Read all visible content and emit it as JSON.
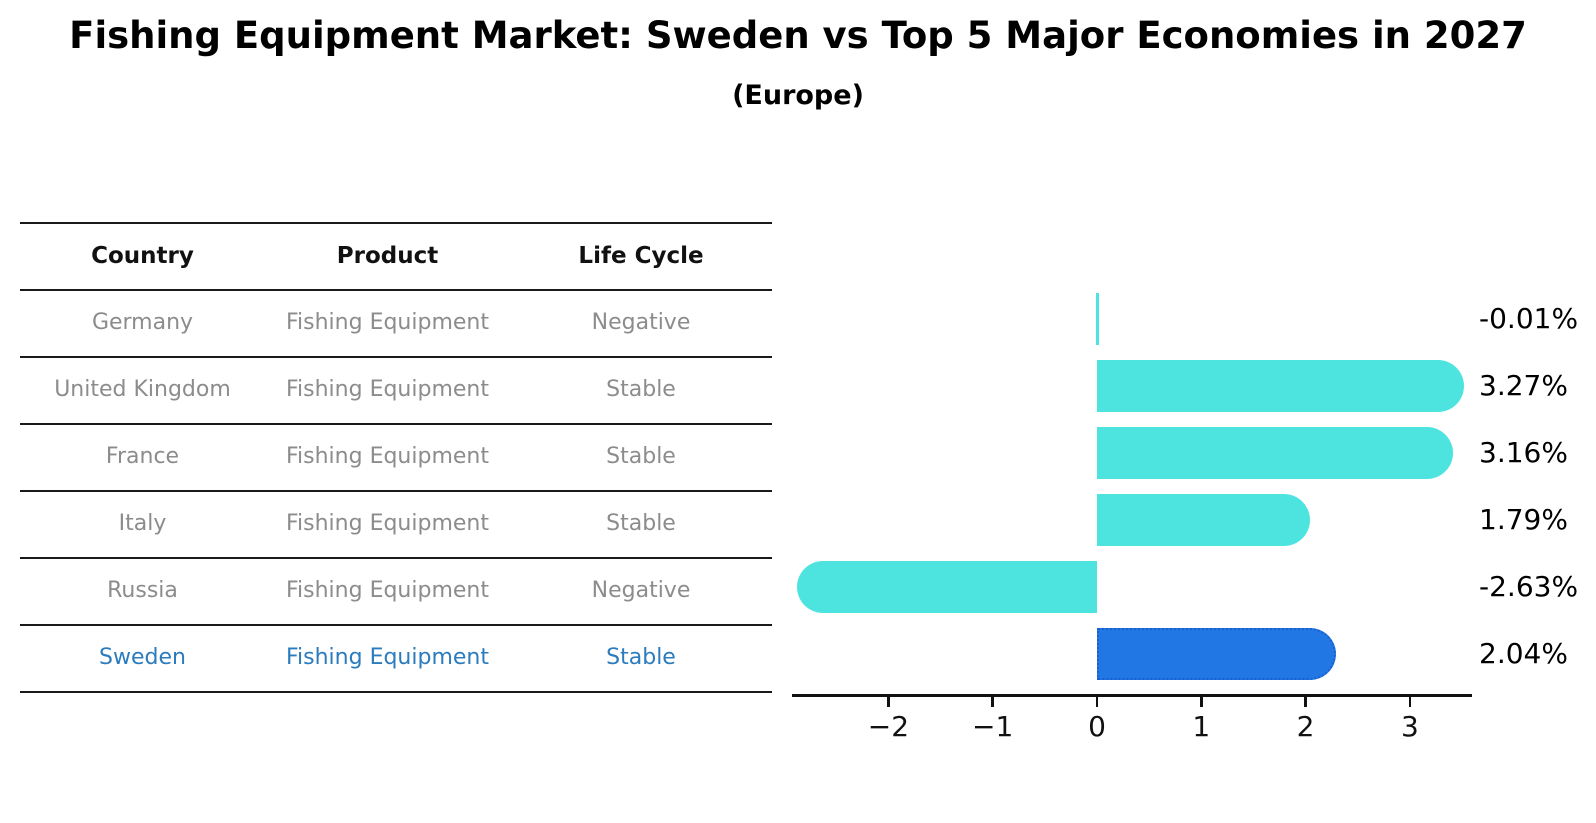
{
  "title": "Fishing Equipment Market: Sweden vs Top 5 Major Economies in 2027",
  "subtitle": "(Europe)",
  "colors": {
    "bar_default": "#4de4e0",
    "bar_highlight": "#2178e4",
    "bar_highlight_border": "#1a5fd0",
    "table_text_gray": "#8c8c8c",
    "table_text_highlight": "#2b7cbe",
    "line_color": "#1a1a1a",
    "axis_color": "#111111",
    "label_color": "#000000"
  },
  "table": {
    "headers": [
      "Country",
      "Product",
      "Life Cycle"
    ],
    "rows": [
      {
        "country": "Germany",
        "product": "Fishing Equipment",
        "life_cycle": "Negative",
        "highlighted": false
      },
      {
        "country": "United Kingdom",
        "product": "Fishing Equipment",
        "life_cycle": "Stable",
        "highlighted": false
      },
      {
        "country": "France",
        "product": "Fishing Equipment",
        "life_cycle": "Stable",
        "highlighted": false
      },
      {
        "country": "Italy",
        "product": "Fishing Equipment",
        "life_cycle": "Stable",
        "highlighted": false
      },
      {
        "country": "Russia",
        "product": "Fishing Equipment",
        "life_cycle": "Negative",
        "highlighted": false
      },
      {
        "country": "Sweden",
        "product": "Fishing Equipment",
        "life_cycle": "Stable",
        "highlighted": true
      }
    ]
  },
  "chart_data": {
    "type": "bar",
    "orientation": "horizontal",
    "title": "Fishing Equipment Market: Sweden vs Top 5 Major Economies in 2027 (Europe)",
    "categories": [
      "Germany",
      "United Kingdom",
      "France",
      "Italy",
      "Russia",
      "Sweden"
    ],
    "values": [
      -0.01,
      3.27,
      3.16,
      1.79,
      -2.63,
      2.04
    ],
    "value_labels": [
      "-0.01%",
      "3.27%",
      "3.16%",
      "1.79%",
      "-2.63%",
      "2.04%"
    ],
    "unit": "percent",
    "highlight_index": 5,
    "highlight_category": "Sweden",
    "xlim": [
      -2.9,
      3.6
    ],
    "xticks": [
      -2,
      -1,
      0,
      1,
      2,
      3
    ],
    "xtick_labels": [
      "−2",
      "−1",
      "0",
      "1",
      "2",
      "3"
    ],
    "grid": false,
    "legend": null
  }
}
